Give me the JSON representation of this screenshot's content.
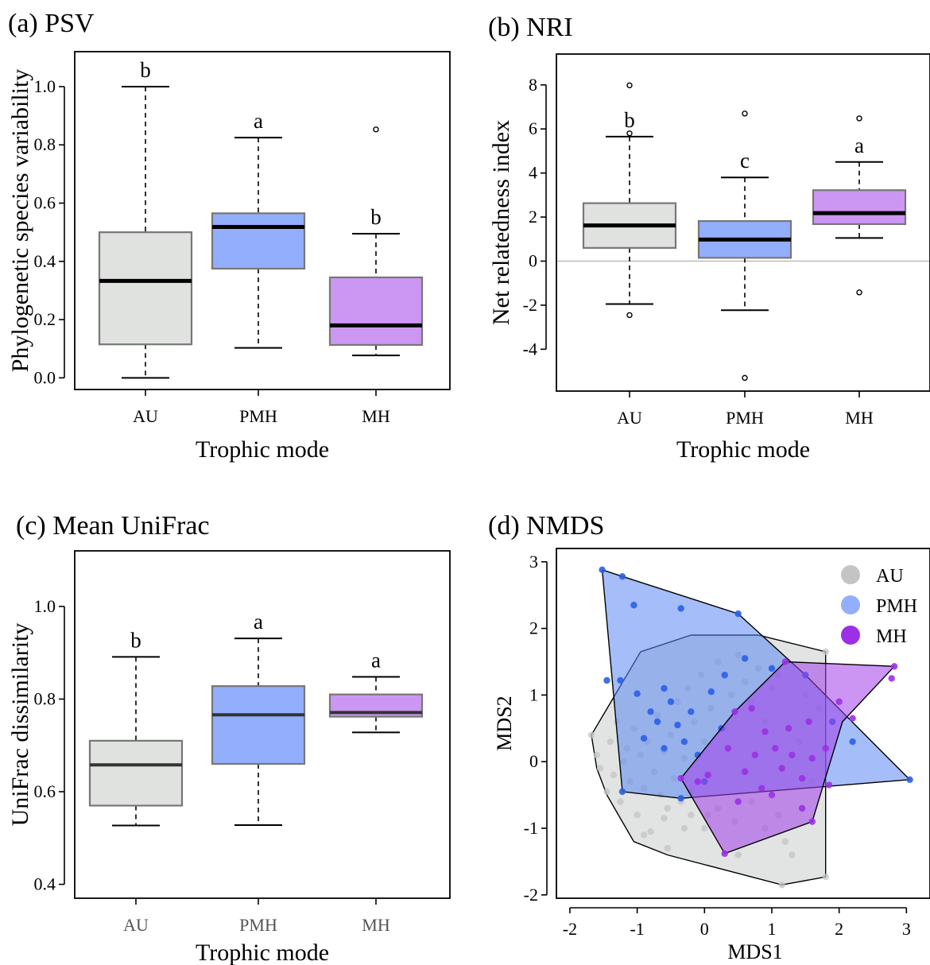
{
  "panels": {
    "a": {
      "title": "(a) PSV"
    },
    "b": {
      "title": "(b) NRI"
    },
    "c": {
      "title": "(c) Mean UniFrac"
    },
    "d": {
      "title": "(d) NMDS"
    }
  },
  "colors": {
    "AU": "#e0e2e0",
    "PMH": "#93aefc",
    "MH": "#cc97f2",
    "AU_point": "#c4c4c4",
    "PMH_point": "#2a5fe8",
    "MH_point": "#9b30e4"
  },
  "chart_data": [
    {
      "type": "box",
      "title": "(a) PSV",
      "xlabel": "Trophic mode",
      "ylabel": "Phylogenetic species variability",
      "categories": [
        "AU",
        "PMH",
        "MH"
      ],
      "ylim": [
        -0.04,
        1.12
      ],
      "yticks": [
        "0.0",
        "0.2",
        "0.4",
        "0.6",
        "0.8",
        "1.0"
      ],
      "boxes": [
        {
          "name": "AU",
          "min": 0.0,
          "q1": 0.115,
          "median": 0.333,
          "q3": 0.5,
          "max": 1.0,
          "outliers": [],
          "letter": "b"
        },
        {
          "name": "PMH",
          "min": 0.103,
          "q1": 0.375,
          "median": 0.518,
          "q3": 0.565,
          "max": 0.825,
          "outliers": [],
          "letter": "a"
        },
        {
          "name": "MH",
          "min": 0.077,
          "q1": 0.113,
          "median": 0.18,
          "q3": 0.345,
          "max": 0.495,
          "outliers": [
            0.853
          ],
          "letter": "b"
        }
      ]
    },
    {
      "type": "box",
      "title": "(b) NRI",
      "xlabel": "Trophic mode",
      "ylabel": "Net relatedness index",
      "categories": [
        "AU",
        "PMH",
        "MH"
      ],
      "ylim": [
        -5.9,
        9.4
      ],
      "yticks": [
        "-4",
        "-2",
        "0",
        "2",
        "4",
        "6",
        "8"
      ],
      "zero_line": true,
      "boxes": [
        {
          "name": "AU",
          "min": -1.95,
          "q1": 0.6,
          "median": 1.62,
          "q3": 2.63,
          "max": 5.65,
          "outliers": [
            7.98,
            5.8,
            -2.45
          ],
          "letter": "b"
        },
        {
          "name": "PMH",
          "min": -2.23,
          "q1": 0.15,
          "median": 0.98,
          "q3": 1.82,
          "max": 3.8,
          "outliers": [
            6.7,
            -5.3
          ],
          "letter": "c"
        },
        {
          "name": "MH",
          "min": 1.05,
          "q1": 1.68,
          "median": 2.18,
          "q3": 3.22,
          "max": 4.5,
          "outliers": [
            6.48,
            -1.42
          ],
          "letter": "a"
        }
      ]
    },
    {
      "type": "box",
      "title": "(c) Mean UniFrac",
      "xlabel": "Trophic mode",
      "ylabel": "UniFrac dissimilarity",
      "categories": [
        "AU",
        "PMH",
        "MH"
      ],
      "ylim": [
        0.37,
        1.12
      ],
      "yticks": [
        "0.4",
        "0.6",
        "0.8",
        "1.0"
      ],
      "boxes": [
        {
          "name": "AU",
          "min": 0.527,
          "q1": 0.57,
          "median": 0.658,
          "q3": 0.71,
          "max": 0.891,
          "outliers": [],
          "letter": "b"
        },
        {
          "name": "PMH",
          "min": 0.528,
          "q1": 0.66,
          "median": 0.766,
          "q3": 0.828,
          "max": 0.931,
          "outliers": [],
          "letter": "a"
        },
        {
          "name": "MH",
          "min": 0.728,
          "q1": 0.762,
          "median": 0.771,
          "q3": 0.81,
          "max": 0.848,
          "outliers": [],
          "letter": "a"
        }
      ]
    },
    {
      "type": "scatter",
      "title": "(d) NMDS",
      "xlabel": "MDS1",
      "ylabel": "MDS2",
      "xlim": [
        -2.2,
        3.35
      ],
      "ylim": [
        -2.05,
        3.2
      ],
      "xticks": [
        "-2",
        "-1",
        "0",
        "1",
        "2",
        "3"
      ],
      "yticks": [
        "-2",
        "-1",
        "0",
        "1",
        "2",
        "3"
      ],
      "legend": {
        "position": "top-right",
        "entries": [
          "AU",
          "PMH",
          "MH"
        ]
      },
      "series": [
        {
          "name": "AU",
          "hull": [
            [
              -1.68,
              0.4
            ],
            [
              -0.95,
              1.65
            ],
            [
              -0.2,
              1.9
            ],
            [
              0.8,
              1.9
            ],
            [
              1.8,
              1.65
            ],
            [
              1.8,
              -1.73
            ],
            [
              1.15,
              -1.85
            ],
            [
              -0.55,
              -1.4
            ],
            [
              -1.05,
              -1.2
            ],
            [
              -1.45,
              -0.5
            ],
            [
              -1.6,
              -0.1
            ]
          ],
          "points": [
            [
              -1.68,
              0.4
            ],
            [
              -1.6,
              0.1
            ],
            [
              -1.55,
              -0.1
            ],
            [
              -1.45,
              -0.45
            ],
            [
              -1.4,
              0.3
            ],
            [
              -1.35,
              -0.2
            ],
            [
              -1.3,
              0.6
            ],
            [
              -1.25,
              -0.6
            ],
            [
              -1.2,
              0.0
            ],
            [
              -1.15,
              0.2
            ],
            [
              -1.1,
              -0.3
            ],
            [
              -1.05,
              0.5
            ],
            [
              -1.0,
              -0.8
            ],
            [
              -0.95,
              0.1
            ],
            [
              -0.9,
              -0.4
            ],
            [
              -0.85,
              0.3
            ],
            [
              -0.8,
              -1.05
            ],
            [
              -0.75,
              -0.15
            ],
            [
              -0.7,
              0.7
            ],
            [
              -0.65,
              -0.5
            ],
            [
              -0.6,
              0.15
            ],
            [
              -0.55,
              -0.7
            ],
            [
              -0.5,
              0.4
            ],
            [
              -0.45,
              -0.25
            ],
            [
              -0.4,
              0.9
            ],
            [
              -0.35,
              -0.6
            ],
            [
              -0.3,
              0.05
            ],
            [
              -0.25,
              1.1
            ],
            [
              -0.2,
              -0.45
            ],
            [
              -0.15,
              0.6
            ],
            [
              -0.1,
              -0.3
            ],
            [
              -0.05,
              1.3
            ],
            [
              0.0,
              0.3
            ],
            [
              0.05,
              -0.8
            ],
            [
              0.1,
              0.8
            ],
            [
              0.2,
              1.5
            ],
            [
              0.3,
              0.5
            ],
            [
              0.4,
              1.0
            ],
            [
              0.5,
              1.6
            ],
            [
              0.6,
              1.2
            ],
            [
              0.7,
              0.9
            ],
            [
              0.8,
              1.4
            ],
            [
              0.9,
              0.6
            ],
            [
              1.0,
              1.1
            ],
            [
              1.1,
              1.3
            ],
            [
              1.2,
              -1.2
            ],
            [
              1.3,
              -1.4
            ],
            [
              1.4,
              0.3
            ],
            [
              1.5,
              1.0
            ],
            [
              1.6,
              -0.3
            ],
            [
              1.7,
              0.8
            ],
            [
              1.8,
              -1.73
            ],
            [
              1.15,
              -1.85
            ],
            [
              1.8,
              1.65
            ],
            [
              0.5,
              -1.4
            ],
            [
              0.0,
              -1.0
            ],
            [
              -0.3,
              -1.0
            ],
            [
              -0.9,
              -1.1
            ],
            [
              -0.55,
              -1.3
            ],
            [
              0.2,
              -0.7
            ],
            [
              0.45,
              -0.9
            ],
            [
              0.7,
              -0.6
            ],
            [
              0.9,
              -1.0
            ],
            [
              1.1,
              -0.8
            ],
            [
              -0.6,
              -0.85
            ],
            [
              -0.2,
              -0.8
            ]
          ]
        },
        {
          "name": "PMH",
          "hull": [
            [
              -1.52,
              2.88
            ],
            [
              -1.22,
              2.78
            ],
            [
              0.5,
              2.22
            ],
            [
              1.5,
              1.3
            ],
            [
              3.05,
              -0.27
            ],
            [
              -0.35,
              -0.55
            ],
            [
              -1.22,
              -0.45
            ]
          ],
          "points": [
            [
              -1.52,
              2.88
            ],
            [
              -1.22,
              2.78
            ],
            [
              -1.05,
              2.35
            ],
            [
              -0.35,
              2.3
            ],
            [
              0.5,
              2.22
            ],
            [
              -1.45,
              1.22
            ],
            [
              -1.25,
              1.22
            ],
            [
              -1.0,
              1.02
            ],
            [
              -0.8,
              0.75
            ],
            [
              -0.6,
              1.1
            ],
            [
              -0.9,
              0.35
            ],
            [
              -0.7,
              0.6
            ],
            [
              -0.5,
              0.9
            ],
            [
              -0.4,
              0.55
            ],
            [
              -0.2,
              0.75
            ],
            [
              0.1,
              1.05
            ],
            [
              0.3,
              1.3
            ],
            [
              0.6,
              1.55
            ],
            [
              0.25,
              0.5
            ],
            [
              -0.3,
              0.3
            ],
            [
              -0.1,
              0.1
            ],
            [
              1.0,
              1.4
            ],
            [
              1.5,
              1.3
            ],
            [
              1.9,
              0.6
            ],
            [
              2.2,
              0.3
            ],
            [
              3.05,
              -0.27
            ],
            [
              -1.22,
              -0.45
            ],
            [
              -0.35,
              -0.55
            ],
            [
              0.0,
              -0.3
            ],
            [
              -0.6,
              0.2
            ]
          ]
        },
        {
          "name": "MH",
          "hull": [
            [
              -0.35,
              -0.25
            ],
            [
              0.3,
              -1.38
            ],
            [
              1.6,
              -0.9
            ],
            [
              2.05,
              0.6
            ],
            [
              2.82,
              1.43
            ],
            [
              1.2,
              1.5
            ],
            [
              0.45,
              0.75
            ]
          ],
          "points": [
            [
              -0.35,
              -0.25
            ],
            [
              0.3,
              -1.38
            ],
            [
              1.6,
              -0.9
            ],
            [
              2.82,
              1.43
            ],
            [
              2.78,
              1.25
            ],
            [
              1.2,
              1.5
            ],
            [
              0.45,
              0.75
            ],
            [
              0.7,
              0.8
            ],
            [
              0.9,
              0.45
            ],
            [
              1.05,
              0.2
            ],
            [
              1.15,
              -0.1
            ],
            [
              1.3,
              0.1
            ],
            [
              1.45,
              -0.25
            ],
            [
              1.6,
              0.05
            ],
            [
              1.8,
              0.2
            ],
            [
              2.0,
              0.9
            ],
            [
              2.2,
              0.65
            ],
            [
              1.85,
              -0.35
            ],
            [
              1.45,
              -0.7
            ],
            [
              0.85,
              -0.4
            ],
            [
              0.6,
              -0.15
            ],
            [
              0.35,
              0.2
            ],
            [
              0.05,
              -0.2
            ],
            [
              -0.1,
              -0.3
            ],
            [
              0.5,
              -0.6
            ],
            [
              1.0,
              -0.5
            ],
            [
              1.25,
              0.5
            ],
            [
              0.75,
              0.1
            ],
            [
              1.55,
              0.6
            ]
          ]
        }
      ]
    }
  ]
}
